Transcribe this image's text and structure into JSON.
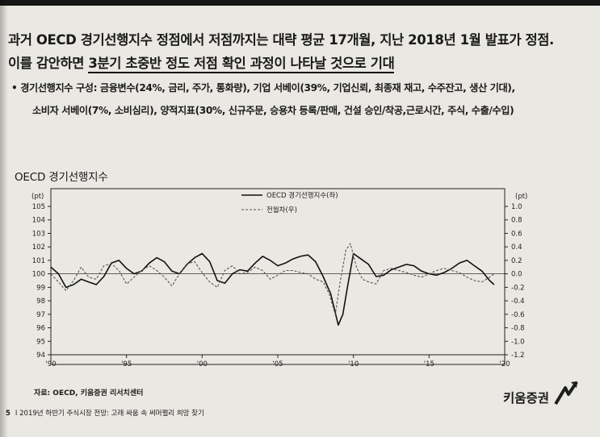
{
  "header": {
    "line1": "과거 OECD 경기선행지수 정점에서 저점까지는 대략 평균 17개월, 지난 2018년 1월 발표가 정점.",
    "line2_prefix": "이를 감안하면 ",
    "line2_underlined": "3분기 초중반 정도 저점 확인 과정이 나타날 것으로 기대",
    "bullet": "•",
    "bullet_line1": "경기선행지수 구성: 금융변수(24%, 금리, 주가, 통화량), 기업 서베이(39%, 기업신뢰, 최종재 재고, 수주잔고, 생산 기대),",
    "bullet_line2": "소비자 서베이(7%, 소비심리), 양적지표(30%, 신규주문, 승용차 등록/판매, 건설 승인/착공,근로시간, 주식, 수출/수입)"
  },
  "source": "자료: OECD, 키움증권 리서치센터",
  "footer": {
    "page": "5",
    "text": "I 2019년 하반기 주식시장 전망: 고래 싸움 속 써머펠리 희망 찾기"
  },
  "brand": {
    "name": "키움증권",
    "accent_color": "#1e1e1e"
  },
  "chart_data": {
    "type": "line",
    "title": "OECD 경기선행지수",
    "left_unit": "(pt)",
    "right_unit": "(pt)",
    "left_axis": {
      "ylim": [
        94,
        105
      ],
      "ticks": [
        "105",
        "104",
        "103",
        "102",
        "101",
        "100",
        "99",
        "98",
        "97",
        "96",
        "95",
        "94"
      ]
    },
    "right_axis": {
      "ylim": [
        -1.2,
        1.0
      ],
      "ticks": [
        "1.0",
        "0.8",
        "0.6",
        "0.4",
        "0.2",
        "0.0",
        "-0.2",
        "-0.4",
        "-0.6",
        "-0.8",
        "-1.0",
        "-1.2"
      ]
    },
    "x_ticks": [
      "'90",
      "'95",
      "'00",
      "'05",
      "'10",
      "'15",
      "'20"
    ],
    "xlim": [
      1990,
      2020
    ],
    "grid": false,
    "legend_position": "top-center",
    "series": [
      {
        "name": "OECD 경기선행지수(좌)",
        "axis": "left",
        "style": "solid",
        "x": [
          1990,
          1990.5,
          1991,
          1991.5,
          1992,
          1992.5,
          1993,
          1993.5,
          1994,
          1994.5,
          1995,
          1995.5,
          1996,
          1996.5,
          1997,
          1997.5,
          1998,
          1998.5,
          1999,
          1999.5,
          2000,
          2000.5,
          2001,
          2001.5,
          2002,
          2002.5,
          2003,
          2003.5,
          2004,
          2004.5,
          2005,
          2005.5,
          2006,
          2006.5,
          2007,
          2007.5,
          2008,
          2008.5,
          2009,
          2009.3,
          2009.6,
          2010,
          2010.5,
          2011,
          2011.5,
          2012,
          2012.5,
          2013,
          2013.5,
          2014,
          2014.5,
          2015,
          2015.5,
          2016,
          2016.5,
          2017,
          2017.5,
          2018,
          2018.5,
          2019,
          2019.3
        ],
        "y": [
          100.5,
          100.0,
          99.0,
          99.2,
          99.6,
          99.4,
          99.2,
          99.8,
          100.8,
          101.0,
          100.4,
          100.0,
          100.2,
          100.8,
          101.2,
          100.9,
          100.2,
          100.0,
          100.7,
          101.2,
          101.5,
          100.9,
          99.5,
          99.3,
          100.0,
          100.3,
          100.2,
          100.8,
          101.3,
          101.0,
          100.6,
          100.8,
          101.1,
          101.3,
          101.4,
          100.9,
          99.8,
          98.5,
          96.2,
          97.0,
          99.0,
          101.5,
          101.1,
          100.7,
          99.8,
          99.9,
          100.3,
          100.5,
          100.7,
          100.6,
          100.2,
          100.0,
          99.9,
          100.1,
          100.4,
          100.8,
          101.0,
          100.6,
          100.2,
          99.5,
          99.2
        ]
      },
      {
        "name": "전월차(우)",
        "axis": "right",
        "style": "dashed",
        "x": [
          1990,
          1990.5,
          1991,
          1991.5,
          1992,
          1992.5,
          1993,
          1993.5,
          1994,
          1994.5,
          1995,
          1995.5,
          1996,
          1996.5,
          1997,
          1997.5,
          1998,
          1998.5,
          1999,
          1999.5,
          2000,
          2000.5,
          2001,
          2001.5,
          2002,
          2002.5,
          2003,
          2003.5,
          2004,
          2004.5,
          2005,
          2005.5,
          2006,
          2006.5,
          2007,
          2007.5,
          2008,
          2008.4,
          2008.8,
          2009.1,
          2009.5,
          2009.8,
          2010.2,
          2010.6,
          2011,
          2011.5,
          2012,
          2012.5,
          2013,
          2013.5,
          2014,
          2014.5,
          2015,
          2015.5,
          2016,
          2016.5,
          2017,
          2017.5,
          2018,
          2018.5,
          2019,
          2019.3
        ],
        "y": [
          0.0,
          -0.12,
          -0.25,
          -0.1,
          0.1,
          -0.05,
          -0.08,
          0.12,
          0.15,
          0.05,
          -0.15,
          -0.05,
          0.05,
          0.12,
          0.05,
          -0.05,
          -0.18,
          0.0,
          0.15,
          0.18,
          0.02,
          -0.12,
          -0.2,
          0.05,
          0.12,
          0.0,
          0.02,
          0.1,
          0.05,
          -0.08,
          -0.02,
          0.05,
          0.05,
          0.02,
          0.0,
          -0.08,
          -0.12,
          -0.3,
          -0.6,
          -0.15,
          0.35,
          0.45,
          0.1,
          -0.08,
          -0.12,
          -0.15,
          0.05,
          0.08,
          0.05,
          0.02,
          -0.02,
          -0.05,
          0.0,
          0.05,
          0.08,
          0.05,
          0.02,
          -0.05,
          -0.1,
          -0.12,
          -0.05,
          0.0
        ]
      }
    ]
  }
}
